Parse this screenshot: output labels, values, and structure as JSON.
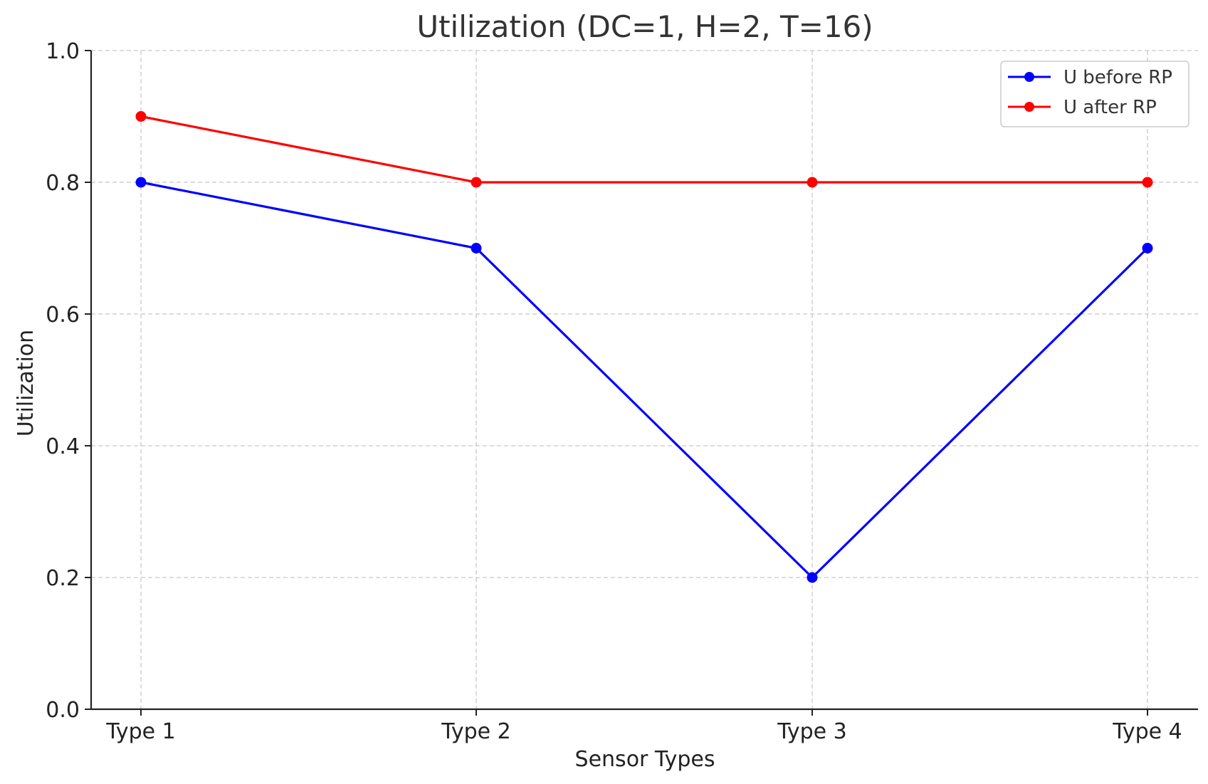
{
  "chart_data": {
    "type": "line",
    "title": "Utilization (DC=1, H=2, T=16)",
    "xlabel": "Sensor Types",
    "ylabel": "Utilization",
    "categories": [
      "Type 1",
      "Type 2",
      "Type 3",
      "Type 4"
    ],
    "ylim": [
      0,
      1.0
    ],
    "yticks": [
      "0.0",
      "0.2",
      "0.4",
      "0.6",
      "0.8",
      "1.0"
    ],
    "grid": true,
    "legend_position": "top-right",
    "series": [
      {
        "name": "U before RP",
        "color": "#0000ff",
        "values": [
          0.8,
          0.7,
          0.2,
          0.7
        ]
      },
      {
        "name": "U after RP",
        "color": "#ff0000",
        "values": [
          0.9,
          0.8,
          0.8,
          0.8
        ]
      }
    ]
  }
}
